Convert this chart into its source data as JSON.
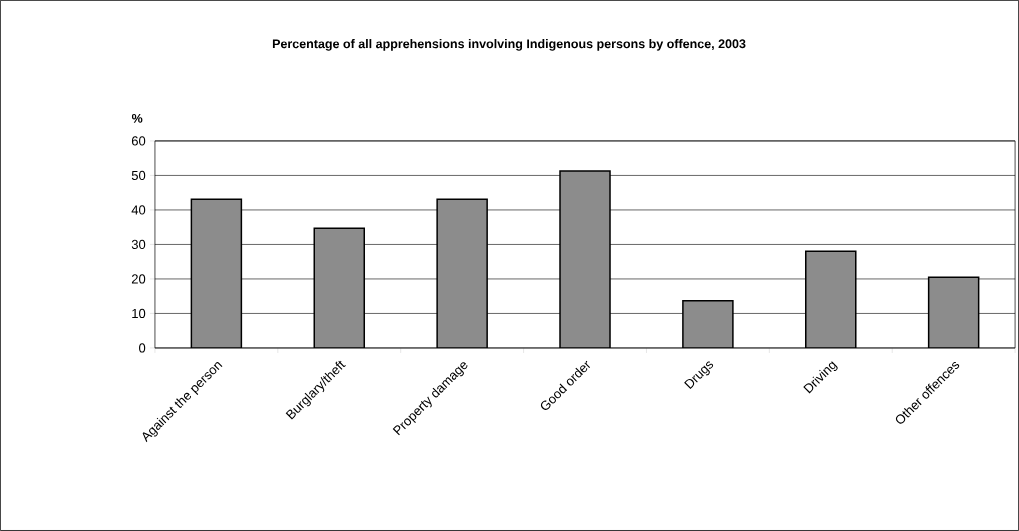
{
  "chart_data": {
    "type": "bar",
    "title": "Percentage of all apprehensions involving Indigenous persons by offence, 2003",
    "ylabel": "%",
    "categories": [
      "Against the person",
      "Burglary/theft",
      "Property damage",
      "Good order",
      "Drugs",
      "Driving",
      "Other offences"
    ],
    "values": [
      43.1,
      34.7,
      43.1,
      51.3,
      13.7,
      28.0,
      20.5
    ],
    "color": "#8c8c8c",
    "ylim": [
      0,
      60
    ],
    "yticks": [
      0,
      10,
      20,
      30,
      40,
      50,
      60
    ],
    "grid": "y"
  }
}
